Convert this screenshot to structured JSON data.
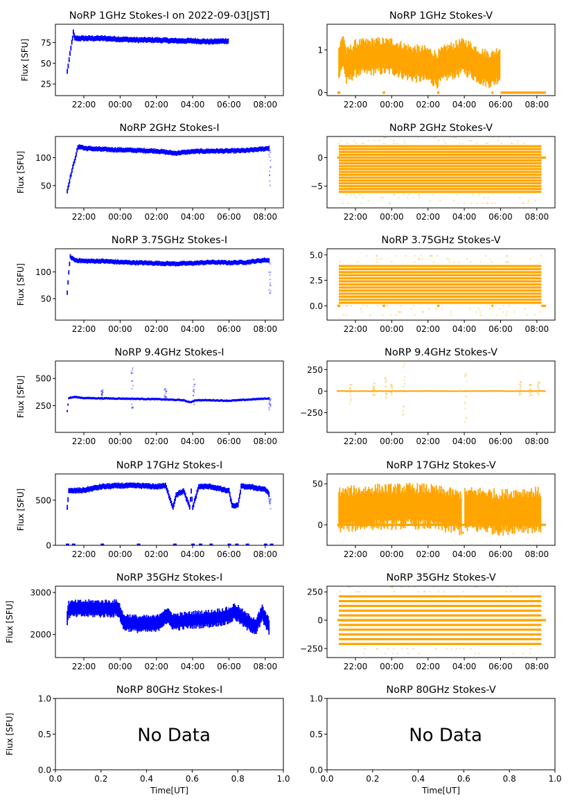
{
  "figure": {
    "date_label": "2022-09-03[JST]",
    "xlabel": "Time[UT]",
    "ylabel": "Flux [SFU]",
    "no_data_text": "No Data",
    "colors": {
      "stokes_i": "#0000ff",
      "stokes_v": "#ffa500",
      "axes": "#000000"
    }
  },
  "chart_data": [
    {
      "type": "scatter",
      "title": "NoRP 1GHz Stokes-I on 2022-09-03[JST]",
      "stokes": "I",
      "xlabel": "",
      "ylabel": "Flux [SFU]",
      "xlim": [
        "20:26",
        "09:00"
      ],
      "xticks": [
        "22:00",
        "00:00",
        "02:00",
        "04:00",
        "06:00",
        "08:00"
      ],
      "ylim": [
        11,
        97
      ],
      "yticks": [
        "25",
        "50",
        "75"
      ],
      "ytick_values": [
        25,
        50,
        75
      ],
      "series": [
        {
          "name": "Stokes-I",
          "x": [
            "21:05",
            "21:20",
            "21:25",
            "21:30",
            "22:00",
            "23:00",
            "00:00",
            "01:00",
            "02:00",
            "03:00",
            "04:00",
            "05:00",
            "06:00"
          ],
          "y": [
            40,
            75,
            87,
            80,
            80,
            80,
            79,
            78,
            78,
            77,
            77,
            76,
            77
          ],
          "spread": 3
        }
      ],
      "markers": []
    },
    {
      "type": "scatter",
      "title": "NoRP 1GHz Stokes-V",
      "stokes": "V",
      "xlabel": "",
      "ylabel": "",
      "xlim": [
        "20:26",
        "09:00"
      ],
      "xticks": [
        "22:00",
        "00:00",
        "02:00",
        "04:00",
        "06:00",
        "08:00"
      ],
      "ylim": [
        -0.07,
        1.6
      ],
      "yticks": [
        "0",
        "1"
      ],
      "ytick_values": [
        0,
        1
      ],
      "series": [
        {
          "name": "Stokes-V",
          "x": [
            "21:05",
            "21:20",
            "21:30",
            "22:00",
            "23:00",
            "00:00",
            "01:00",
            "02:00",
            "02:30",
            "03:00",
            "04:00",
            "05:00",
            "05:30",
            "06:00"
          ],
          "y": [
            0.7,
            1.0,
            0.6,
            0.8,
            0.85,
            0.85,
            0.7,
            0.65,
            0.55,
            0.7,
            0.85,
            0.6,
            0.55,
            0.7
          ],
          "spread": 0.35
        }
      ],
      "markers": [
        {
          "x0": "21:00",
          "x1": "21:10",
          "y": 0
        },
        {
          "x0": "23:30",
          "x1": "23:38",
          "y": 0
        },
        {
          "x0": "02:30",
          "x1": "02:38",
          "y": 0
        },
        {
          "x0": "05:30",
          "x1": "05:36",
          "y": 0
        },
        {
          "x0": "06:00",
          "x1": "08:30",
          "y": 0
        }
      ]
    },
    {
      "type": "scatter",
      "title": "NoRP 2GHz Stokes-I",
      "stokes": "I",
      "xlabel": "",
      "ylabel": "Flux [SFU]",
      "xlim": [
        "20:26",
        "09:00"
      ],
      "xticks": [
        "22:00",
        "00:00",
        "02:00",
        "04:00",
        "06:00",
        "08:00"
      ],
      "ylim": [
        10,
        138
      ],
      "yticks": [
        "50",
        "100"
      ],
      "ytick_values": [
        50,
        100
      ],
      "series": [
        {
          "name": "Stokes-I",
          "x": [
            "21:05",
            "21:15",
            "21:40",
            "21:50",
            "22:00",
            "23:00",
            "00:00",
            "01:00",
            "02:00",
            "03:00",
            "04:00",
            "05:00",
            "06:00",
            "07:00",
            "08:00",
            "08:15"
          ],
          "y": [
            40,
            65,
            118,
            120,
            117,
            115,
            114,
            113,
            112,
            108,
            111,
            112,
            112,
            113,
            116,
            118
          ],
          "spread": 4
        }
      ],
      "outliers": [
        {
          "x": "08:15",
          "y0": 42,
          "y1": 118
        }
      ],
      "markers": []
    },
    {
      "type": "scatter",
      "title": "NoRP 2GHz Stokes-V",
      "stokes": "V",
      "xlabel": "",
      "ylabel": "",
      "xlim": [
        "20:26",
        "09:00"
      ],
      "xticks": [
        "22:00",
        "00:00",
        "02:00",
        "04:00",
        "06:00",
        "08:00"
      ],
      "ylim": [
        -8.8,
        3.7
      ],
      "yticks": [
        "-5",
        "0"
      ],
      "ytick_values": [
        -5,
        0
      ],
      "levels": {
        "from": -6,
        "to": 2,
        "step": 0.5,
        "x0": "21:05",
        "x1": "08:15"
      },
      "markers": [
        {
          "x0": "21:00",
          "x1": "08:30",
          "y": 0
        }
      ]
    },
    {
      "type": "scatter",
      "title": "NoRP 3.75GHz Stokes-I",
      "stokes": "I",
      "xlabel": "",
      "ylabel": "Flux [SFU]",
      "xlim": [
        "20:26",
        "09:00"
      ],
      "xticks": [
        "22:00",
        "00:00",
        "02:00",
        "04:00",
        "06:00",
        "08:00"
      ],
      "ylim": [
        10,
        143
      ],
      "yticks": [
        "50",
        "100"
      ],
      "ytick_values": [
        50,
        100
      ],
      "series": [
        {
          "name": "Stokes-I",
          "x": [
            "21:05",
            "21:10",
            "21:15",
            "21:30",
            "22:00",
            "23:00",
            "00:00",
            "01:00",
            "02:00",
            "03:00",
            "04:00",
            "05:00",
            "06:00",
            "07:00",
            "08:00",
            "08:15"
          ],
          "y": [
            60,
            100,
            128,
            122,
            120,
            120,
            118,
            117,
            116,
            115,
            116,
            118,
            117,
            118,
            122,
            121
          ],
          "spread": 4
        }
      ],
      "outliers": [
        {
          "x": "08:15",
          "y0": 60,
          "y1": 120
        }
      ],
      "markers": []
    },
    {
      "type": "scatter",
      "title": "NoRP 3.75GHz Stokes-V",
      "stokes": "V",
      "xlabel": "",
      "ylabel": "",
      "xlim": [
        "20:26",
        "09:00"
      ],
      "xticks": [
        "22:00",
        "00:00",
        "02:00",
        "04:00",
        "06:00",
        "08:00"
      ],
      "ylim": [
        -1.4,
        5.6
      ],
      "yticks": [
        "0.0",
        "2.5",
        "5.0"
      ],
      "ytick_values": [
        0,
        2.5,
        5
      ],
      "levels": {
        "from": 0.3,
        "to": 4.0,
        "step": 0.3,
        "x0": "21:05",
        "x1": "08:15"
      },
      "markers": [
        {
          "x0": "21:00",
          "x1": "21:10",
          "y": 0
        },
        {
          "x0": "23:30",
          "x1": "23:38",
          "y": 0
        },
        {
          "x0": "02:30",
          "x1": "02:38",
          "y": 0
        },
        {
          "x0": "05:30",
          "x1": "05:36",
          "y": 0
        },
        {
          "x0": "08:15",
          "x1": "08:30",
          "y": 0
        }
      ]
    },
    {
      "type": "scatter",
      "title": "NoRP 9.4GHz Stokes-I",
      "stokes": "I",
      "xlabel": "",
      "ylabel": "Flux [SFU]",
      "xlim": [
        "20:26",
        "09:00"
      ],
      "xticks": [
        "22:00",
        "00:00",
        "02:00",
        "04:00",
        "06:00",
        "08:00"
      ],
      "ylim": [
        5,
        660
      ],
      "yticks": [
        "250",
        "500"
      ],
      "ytick_values": [
        250,
        500
      ],
      "series": [
        {
          "name": "Stokes-I",
          "x": [
            "21:05",
            "21:10",
            "21:30",
            "22:00",
            "00:00",
            "02:00",
            "03:30",
            "03:50",
            "04:10",
            "05:00",
            "06:00",
            "07:00",
            "08:00",
            "08:15"
          ],
          "y": [
            200,
            320,
            330,
            320,
            315,
            310,
            300,
            280,
            300,
            300,
            295,
            305,
            315,
            318
          ],
          "spread": 10
        }
      ],
      "outliers": [
        {
          "x": "00:40",
          "y0": 220,
          "y1": 600
        },
        {
          "x": "04:05",
          "y0": 250,
          "y1": 520
        },
        {
          "x": "02:30",
          "y0": 300,
          "y1": 410
        },
        {
          "x": "23:00",
          "y0": 300,
          "y1": 400
        },
        {
          "x": "08:15",
          "y0": 200,
          "y1": 330
        }
      ],
      "markers": []
    },
    {
      "type": "scatter",
      "title": "NoRP 9.4GHz Stokes-V",
      "stokes": "V",
      "xlabel": "",
      "ylabel": "",
      "xlim": [
        "20:26",
        "09:00"
      ],
      "xticks": [
        "22:00",
        "00:00",
        "02:00",
        "04:00",
        "06:00",
        "08:00"
      ],
      "ylim": [
        -480,
        350
      ],
      "yticks": [
        "-250",
        "0",
        "250"
      ],
      "ytick_values": [
        -250,
        0,
        250
      ],
      "series": [
        {
          "name": "Stokes-V",
          "x": [
            "21:00",
            "08:30"
          ],
          "y": [
            0,
            0
          ],
          "spread": 8
        }
      ],
      "outliers": [
        {
          "x": "00:40",
          "y0": -320,
          "y1": 320
        },
        {
          "x": "04:05",
          "y0": -360,
          "y1": 290
        },
        {
          "x": "23:00",
          "y0": -60,
          "y1": 100
        },
        {
          "x": "23:40",
          "y0": -80,
          "y1": 170
        },
        {
          "x": "00:00",
          "y0": -60,
          "y1": 90
        },
        {
          "x": "21:45",
          "y0": -160,
          "y1": 80
        },
        {
          "x": "07:05",
          "y0": -60,
          "y1": 120
        },
        {
          "x": "07:40",
          "y0": -60,
          "y1": 80
        },
        {
          "x": "08:05",
          "y0": -40,
          "y1": 110
        }
      ],
      "markers": []
    },
    {
      "type": "scatter",
      "title": "NoRP 17GHz Stokes-I",
      "stokes": "I",
      "xlabel": "",
      "ylabel": "Flux [SFU]",
      "xlim": [
        "20:26",
        "09:00"
      ],
      "xticks": [
        "22:00",
        "00:00",
        "02:00",
        "04:00",
        "06:00",
        "08:00"
      ],
      "ylim": [
        0,
        790
      ],
      "yticks": [
        "0",
        "500"
      ],
      "ytick_values": [
        0,
        500
      ],
      "series": [
        {
          "name": "Stokes-I",
          "x": [
            "21:05",
            "21:10",
            "22:00",
            "23:00",
            "00:00",
            "01:00",
            "02:00",
            "02:30",
            "02:55",
            "03:05",
            "03:30",
            "03:50",
            "03:55",
            "04:00",
            "04:20",
            "05:00",
            "06:00",
            "06:10",
            "06:30",
            "06:40",
            "07:00",
            "08:00",
            "08:15"
          ],
          "y": [
            420,
            600,
            610,
            650,
            660,
            660,
            650,
            660,
            420,
            560,
            600,
            420,
            600,
            420,
            650,
            650,
            600,
            440,
            440,
            650,
            650,
            620,
            550
          ],
          "spread": 28
        }
      ],
      "outliers": [
        {
          "x": "08:15",
          "y0": 400,
          "y1": 560
        }
      ],
      "zero_marks": [
        "21:05",
        "21:25",
        "23:00",
        "01:00",
        "03:00",
        "04:00",
        "04:25",
        "05:00",
        "06:00",
        "06:25",
        "07:00",
        "08:00",
        "08:20"
      ],
      "markers": []
    },
    {
      "type": "scatter",
      "title": "NoRP 17GHz Stokes-V",
      "stokes": "V",
      "xlabel": "",
      "ylabel": "",
      "xlim": [
        "20:26",
        "09:00"
      ],
      "xticks": [
        "22:00",
        "00:00",
        "02:00",
        "04:00",
        "06:00",
        "08:00"
      ],
      "ylim": [
        -25,
        62
      ],
      "yticks": [
        "0",
        "50"
      ],
      "ytick_values": [
        0,
        50
      ],
      "series": [
        {
          "name": "Stokes-V",
          "x": [
            "21:05",
            "22:00",
            "23:00",
            "00:00",
            "01:00",
            "02:00",
            "03:00",
            "03:50",
            "04:10",
            "05:00",
            "06:00",
            "07:00",
            "08:15"
          ],
          "y": [
            18,
            20,
            22,
            22,
            23,
            22,
            18,
            15,
            18,
            18,
            15,
            18,
            18
          ],
          "spread": 22
        }
      ],
      "gap": [
        "03:52",
        "04:00"
      ],
      "markers": [
        {
          "x0": "21:00",
          "x1": "08:30",
          "y": 0
        }
      ]
    },
    {
      "type": "scatter",
      "title": "NoRP 35GHz Stokes-I",
      "stokes": "I",
      "xlabel": "",
      "ylabel": "Flux [SFU]",
      "xlim": [
        "20:26",
        "09:00"
      ],
      "xticks": [
        "22:00",
        "00:00",
        "02:00",
        "04:00",
        "06:00",
        "08:00"
      ],
      "ylim": [
        1450,
        3150
      ],
      "yticks": [
        "2000",
        "3000"
      ],
      "ytick_values": [
        2000,
        3000
      ],
      "series": [
        {
          "name": "Stokes-I",
          "x": [
            "21:05",
            "21:10",
            "22:00",
            "23:00",
            "23:55",
            "00:10",
            "01:00",
            "02:00",
            "02:30",
            "03:00",
            "04:00",
            "05:00",
            "06:00",
            "06:20",
            "07:00",
            "07:30",
            "07:50",
            "08:15"
          ],
          "y": [
            2400,
            2600,
            2620,
            2620,
            2620,
            2300,
            2250,
            2250,
            2450,
            2300,
            2350,
            2380,
            2450,
            2550,
            2300,
            2200,
            2500,
            2150
          ],
          "spread": 170
        }
      ],
      "markers": []
    },
    {
      "type": "scatter",
      "title": "NoRP 35GHz Stokes-V",
      "stokes": "V",
      "xlabel": "",
      "ylabel": "",
      "xlim": [
        "20:26",
        "09:00"
      ],
      "xticks": [
        "22:00",
        "00:00",
        "02:00",
        "04:00",
        "06:00",
        "08:00"
      ],
      "ylim": [
        -330,
        300
      ],
      "yticks": [
        "-250",
        "0",
        "250"
      ],
      "ytick_values": [
        -250,
        0,
        250
      ],
      "levels": {
        "from": -210,
        "to": 210,
        "step": 42,
        "x0": "21:05",
        "x1": "08:15"
      },
      "markers": [
        {
          "x0": "21:00",
          "x1": "08:30",
          "y": 0
        }
      ]
    },
    {
      "type": "scatter",
      "title": "NoRP 80GHz Stokes-I",
      "stokes": "I",
      "xlabel": "Time[UT]",
      "ylabel": "Flux [SFU]",
      "no_data": true,
      "xlim": [
        0,
        1
      ],
      "xticks": [
        "0.0",
        "0.2",
        "0.4",
        "0.6",
        "0.8",
        "1.0"
      ],
      "ylim": [
        0,
        1
      ],
      "yticks": [
        "0.0",
        "0.5",
        "1.0"
      ],
      "ytick_values": [
        0,
        0.5,
        1
      ],
      "annotation": "No Data"
    },
    {
      "type": "scatter",
      "title": "NoRP 80GHz Stokes-V",
      "stokes": "V",
      "xlabel": "Time[UT]",
      "ylabel": "",
      "no_data": true,
      "xlim": [
        0,
        1
      ],
      "xticks": [
        "0.0",
        "0.2",
        "0.4",
        "0.6",
        "0.8",
        "1.0"
      ],
      "ylim": [
        0,
        1
      ],
      "yticks": [
        "0.0",
        "0.5",
        "1.0"
      ],
      "ytick_values": [
        0,
        0.5,
        1
      ],
      "annotation": "No Data"
    }
  ]
}
